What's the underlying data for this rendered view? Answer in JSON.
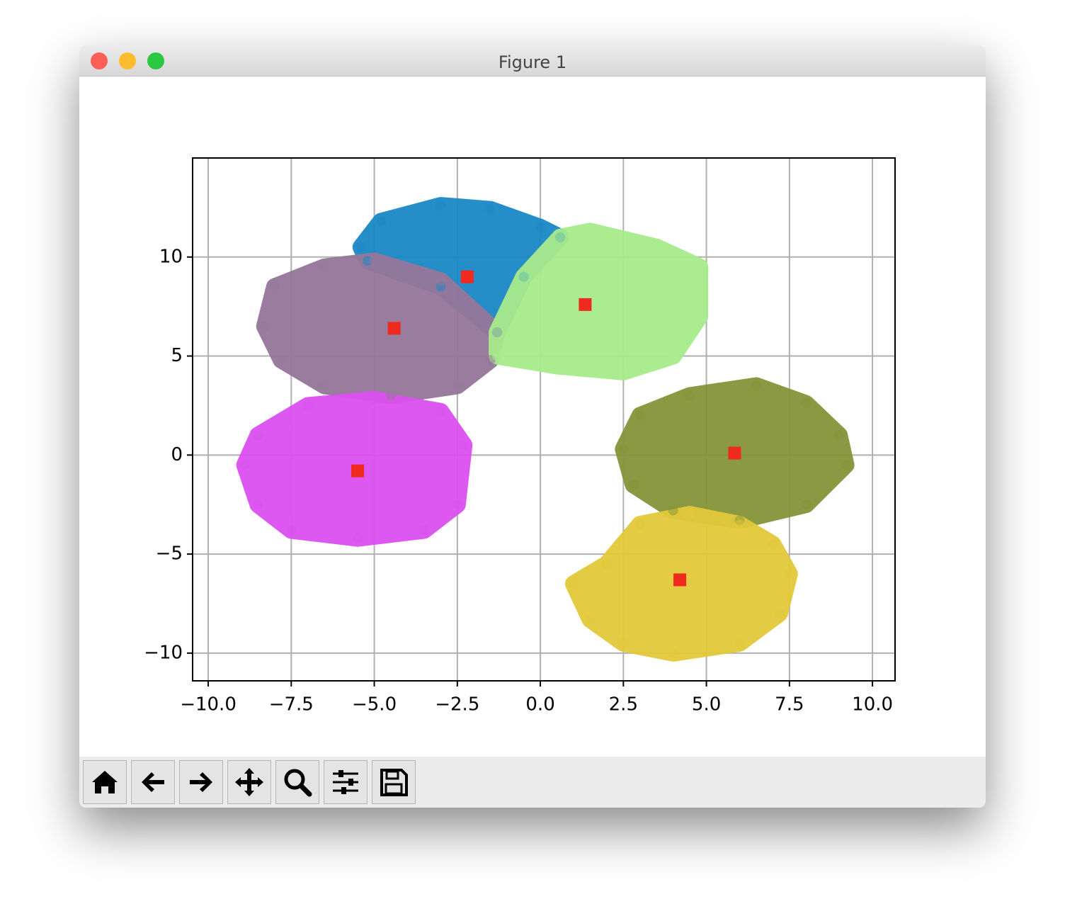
{
  "window": {
    "title": "Figure 1"
  },
  "chart_data": {
    "type": "scatter",
    "xlim": [
      -10.47,
      10.68
    ],
    "ylim": [
      -11.4,
      15.0
    ],
    "xticks": [
      {
        "value": -10,
        "label": "−10.0"
      },
      {
        "value": -7.5,
        "label": "−7.5"
      },
      {
        "value": -5,
        "label": "−5.0"
      },
      {
        "value": -2.5,
        "label": "−2.5"
      },
      {
        "value": 0,
        "label": "0.0"
      },
      {
        "value": 2.5,
        "label": "2.5"
      },
      {
        "value": 5,
        "label": "5.0"
      },
      {
        "value": 7.5,
        "label": "7.5"
      },
      {
        "value": 10,
        "label": "10.0"
      }
    ],
    "yticks": [
      {
        "value": -10,
        "label": "−10"
      },
      {
        "value": -5,
        "label": "−5"
      },
      0,
      5,
      10
    ],
    "grid": true,
    "series": [
      {
        "color": "#1a87c6",
        "marker": "circle",
        "x": [
          -5.4,
          -4.8,
          -3,
          -1.5,
          0,
          0.6,
          -0.5,
          -1.3,
          -3,
          -5.2
        ],
        "y": [
          10.5,
          11.8,
          12.6,
          12.4,
          11.5,
          11,
          9,
          6.2,
          8.5,
          9.8
        ]
      },
      {
        "color": "#957799",
        "marker": "circle",
        "x": [
          -8,
          -6.5,
          -5,
          -3,
          -1.3,
          -1.5,
          -2.5,
          -4.5,
          -6.5,
          -7.8,
          -8.3
        ],
        "y": [
          8.5,
          9.5,
          9.8,
          8.8,
          6.2,
          4.8,
          3.5,
          3,
          3.5,
          4.8,
          6.5
        ]
      },
      {
        "color": "#a8eb8c",
        "marker": "circle",
        "x": [
          0.6,
          1.5,
          3.5,
          4.8,
          4.8,
          4,
          2.5,
          0.5,
          -1.3,
          -1.3,
          -0.5
        ],
        "y": [
          11,
          11.3,
          10.5,
          9.5,
          7,
          5,
          4.2,
          4.5,
          5,
          6.2,
          9
        ]
      },
      {
        "color": "#dc50f0",
        "marker": "circle",
        "x": [
          -8.5,
          -7,
          -5,
          -3,
          -2.3,
          -2.5,
          -3.5,
          -5.5,
          -7.5,
          -8.5,
          -8.9
        ],
        "y": [
          1,
          2.5,
          2.8,
          2.2,
          0.5,
          -2.5,
          -3.8,
          -4.2,
          -3.8,
          -2.5,
          -0.5
        ]
      },
      {
        "color": "#849438",
        "marker": "circle",
        "x": [
          3,
          4.5,
          6.5,
          8,
          9,
          9.2,
          8,
          6,
          4,
          2.8,
          2.5
        ],
        "y": [
          2,
          3,
          3.5,
          2.6,
          1,
          -0.5,
          -2.5,
          -3.3,
          -2.8,
          -1.5,
          0.3
        ]
      },
      {
        "color": "#e2c93a",
        "marker": "circle",
        "x": [
          2,
          3,
          4.5,
          6,
          7,
          7.5,
          7.2,
          6,
          4,
          2.5,
          1.5,
          1
        ],
        "y": [
          -5.5,
          -3.5,
          -3,
          -3.5,
          -4.5,
          -6,
          -8,
          -9.5,
          -10,
          -9.5,
          -8.3,
          -6.5
        ]
      },
      {
        "color": "#f02a1e",
        "marker": "square",
        "x": [
          -2.2,
          1.35,
          -4.4,
          -5.5,
          5.85,
          4.2
        ],
        "y": [
          9.0,
          7.6,
          6.4,
          -0.8,
          0.1,
          -6.3
        ]
      }
    ]
  }
}
